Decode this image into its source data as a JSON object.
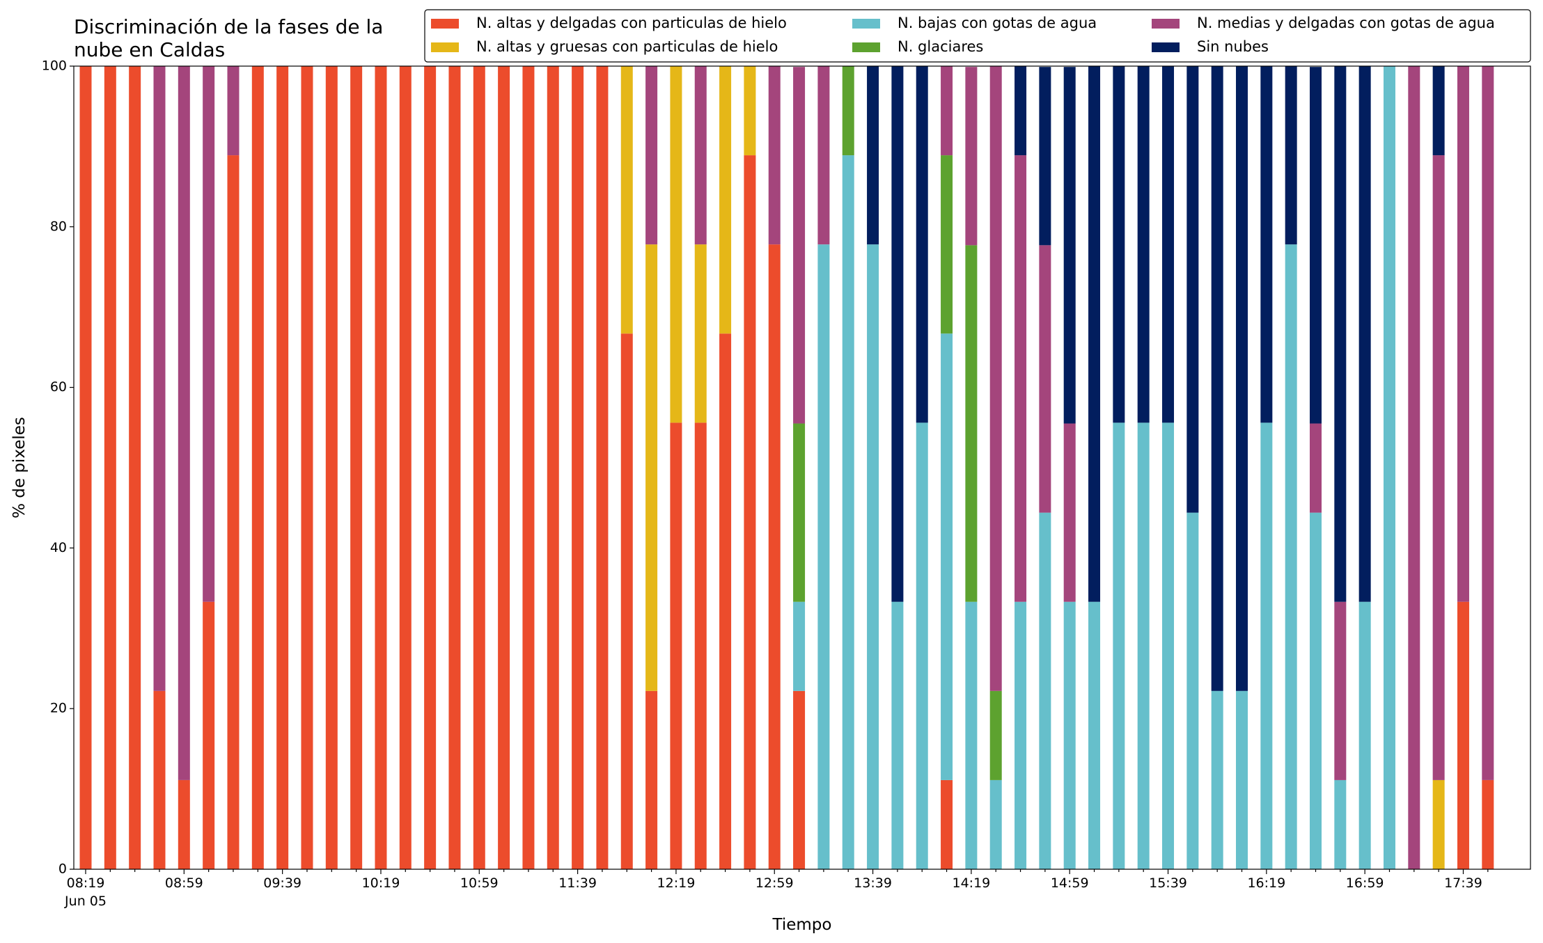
{
  "chart_data": {
    "type": "stacked_bar",
    "title": "Discriminación de la fases de la nube en Caldas",
    "x_label": "Tiempo",
    "y_label": "% de pixeles",
    "x_date_label": "Jun 05",
    "categories": [
      "08:19",
      null,
      null,
      null,
      "08:59",
      null,
      null,
      null,
      "09:39",
      null,
      null,
      null,
      "10:19",
      null,
      null,
      null,
      "10:59",
      null,
      null,
      null,
      "11:39",
      null,
      null,
      null,
      "12:19",
      null,
      null,
      null,
      "12:59",
      null,
      null,
      null,
      "13:39",
      null,
      null,
      null,
      "14:19",
      null,
      null,
      null,
      "14:59",
      null,
      null,
      null,
      "15:39",
      null,
      null,
      null,
      "16:19",
      null,
      null,
      null,
      "16:59",
      null,
      null,
      null,
      "17:39",
      null
    ],
    "ylim": [
      0,
      100
    ],
    "yticks": [
      0,
      20,
      40,
      60,
      80,
      100
    ],
    "legend": "top-right",
    "series": [
      {
        "name": "N. altas y delgadas con particulas de hielo",
        "color": "#ec4c2c",
        "values": [
          100,
          100,
          100,
          22.2,
          11.1,
          33.3,
          88.9,
          100,
          100,
          100,
          100,
          100,
          100,
          100,
          100,
          100,
          100,
          100,
          100,
          100,
          100,
          100,
          66.7,
          22.2,
          55.6,
          55.6,
          66.7,
          88.9,
          77.8,
          22.2,
          0,
          0,
          0,
          0,
          0,
          11.1,
          0,
          0,
          0,
          0,
          0,
          0,
          0,
          0,
          0,
          0,
          0,
          0,
          0,
          0,
          0,
          0,
          0,
          0,
          0,
          0,
          33.3,
          11.1
        ]
      },
      {
        "name": "N. altas y gruesas con particulas de hielo",
        "color": "#e5b718",
        "values": [
          0,
          0,
          0,
          0,
          0,
          0,
          0,
          0,
          0,
          0,
          0,
          0,
          0,
          0,
          0,
          0,
          0,
          0,
          0,
          0,
          0,
          0,
          33.3,
          55.6,
          44.4,
          22.2,
          33.3,
          11.1,
          0,
          0,
          0,
          0,
          0,
          0,
          0,
          0,
          0,
          0,
          0,
          0,
          0,
          0,
          0,
          0,
          0,
          0,
          0,
          0,
          0,
          0,
          0,
          0,
          0,
          0,
          0,
          11.1,
          0,
          0
        ]
      },
      {
        "name": "N. bajas con gotas de agua",
        "color": "#66bfcb",
        "values": [
          0,
          0,
          0,
          0,
          0,
          0,
          0,
          0,
          0,
          0,
          0,
          0,
          0,
          0,
          0,
          0,
          0,
          0,
          0,
          0,
          0,
          0,
          0,
          0,
          0,
          0,
          0,
          0,
          0,
          11.1,
          77.8,
          88.9,
          77.8,
          33.3,
          55.6,
          55.6,
          33.3,
          11.1,
          33.3,
          44.4,
          33.3,
          33.3,
          55.6,
          55.6,
          55.6,
          44.4,
          22.2,
          22.2,
          55.6,
          77.8,
          44.4,
          11.1,
          33.3,
          100,
          0,
          0,
          0,
          0
        ]
      },
      {
        "name": "N. glaciares",
        "color": "#5da22f",
        "values": [
          0,
          0,
          0,
          0,
          0,
          0,
          0,
          0,
          0,
          0,
          0,
          0,
          0,
          0,
          0,
          0,
          0,
          0,
          0,
          0,
          0,
          0,
          0,
          0,
          0,
          0,
          0,
          0,
          0,
          22.2,
          0,
          11.1,
          0,
          0,
          0,
          22.2,
          44.4,
          11.1,
          0,
          0,
          0,
          0,
          0,
          0,
          0,
          0,
          0,
          0,
          0,
          0,
          0,
          0,
          0,
          0,
          0,
          0,
          0,
          0
        ]
      },
      {
        "name": "N. medias y delgadas con gotas de agua",
        "color": "#a4457c",
        "values": [
          0,
          0,
          0,
          77.8,
          88.9,
          66.7,
          11.1,
          0,
          0,
          0,
          0,
          0,
          0,
          0,
          0,
          0,
          0,
          0,
          0,
          0,
          0,
          0,
          0,
          22.2,
          0,
          22.2,
          0,
          0,
          22.2,
          44.4,
          22.2,
          0,
          0,
          0,
          0,
          11.1,
          22.2,
          77.8,
          55.6,
          33.3,
          22.2,
          0,
          0,
          0,
          0,
          0,
          0,
          0,
          0,
          0,
          11.1,
          22.2,
          0,
          0,
          100,
          77.8,
          66.7,
          88.9
        ]
      },
      {
        "name": "Sin nubes",
        "color": "#021e5e",
        "values": [
          0,
          0,
          0,
          0,
          0,
          0,
          0,
          0,
          0,
          0,
          0,
          0,
          0,
          0,
          0,
          0,
          0,
          0,
          0,
          0,
          0,
          0,
          0,
          0,
          0,
          0,
          0,
          0,
          0,
          0,
          0,
          0,
          22.2,
          66.7,
          44.4,
          0,
          0,
          0,
          11.1,
          22.2,
          44.4,
          66.7,
          44.4,
          44.4,
          44.4,
          55.6,
          77.8,
          77.8,
          44.4,
          22.2,
          44.4,
          66.7,
          66.7,
          0,
          0,
          11.1,
          0,
          0
        ]
      }
    ]
  }
}
